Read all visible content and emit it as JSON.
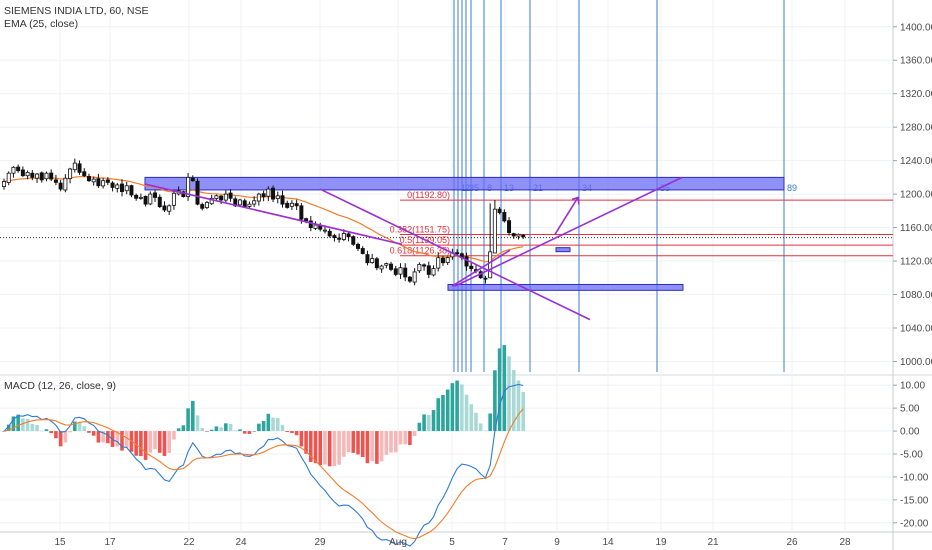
{
  "header": {
    "symbol_line": "SIEMENS INDIA LTD, 60, NSE",
    "ema_label": "EMA (25, close)"
  },
  "macd": {
    "label": "MACD (12, 26, close, 9)",
    "fast": 12,
    "slow": 26,
    "signal": 9
  },
  "colors": {
    "up": "#2ca59d",
    "up_light": "#a9d9d4",
    "down": "#ef5350",
    "down_light": "#f6b7b6",
    "ema": "#f57c2a",
    "macd_line": "#2f7bd6",
    "signal_line": "#f57c2a",
    "rect": "#6a6cf5",
    "fib_red": "#e0323c",
    "fib_time": "#3b7bd4",
    "trend": "#9a2fd6",
    "grid": "#eef1f5",
    "axis": "#4a4a4a"
  },
  "x_axis": {
    "ticks": [
      "15",
      "17",
      "22",
      "24",
      "29",
      "Aug",
      "5",
      "7",
      "9",
      "14",
      "19",
      "21",
      "26",
      "28"
    ]
  },
  "price_axis": {
    "ticks": [
      "1400.00",
      "1360.00",
      "1320.00",
      "1280.00",
      "1240.00",
      "1200.00",
      "1160.00",
      "1120.00",
      "1080.00",
      "1040.00",
      "1000.00"
    ],
    "range": [
      985,
      1432
    ]
  },
  "macd_axis": {
    "ticks": [
      "10.00",
      "5.00",
      "0.00",
      "-5.00",
      "-10.00",
      "-15.00",
      "-20.00"
    ],
    "range": [
      -22,
      12
    ]
  },
  "chart_data": [
    {
      "type": "candlestick",
      "title": "SIEMENS INDIA LTD, 60, NSE",
      "ylim": [
        985,
        1432
      ],
      "indicators": [
        "EMA (25, close)"
      ],
      "annotations": {
        "fib_retracement": [
          {
            "label": "0(1192.80)",
            "value": 1192.8
          },
          {
            "label": "0.382(1151.75)",
            "value": 1151.75
          },
          {
            "label": "0.5(1139.05)",
            "value": 1139.05
          },
          {
            "label": "0.618(1126.38)",
            "value": 1126.38
          }
        ],
        "fib_time_zones": [
          "1",
          "2",
          "3",
          "5",
          "8",
          "13",
          "21",
          "34",
          "55",
          "89"
        ],
        "resistance_zone": [
          1205,
          1220
        ],
        "support_zone": [
          1085,
          1092
        ],
        "last_price_line": 1148
      },
      "series": [
        {
          "name": "price",
          "close_path": [
            1215,
            1225,
            1232,
            1228,
            1222,
            1226,
            1220,
            1224,
            1217,
            1225,
            1218,
            1214,
            1206,
            1219,
            1230,
            1237,
            1226,
            1222,
            1216,
            1218,
            1210,
            1216,
            1214,
            1208,
            1211,
            1203,
            1210,
            1199,
            1195,
            1196,
            1188,
            1200,
            1196,
            1185,
            1181,
            1186,
            1201,
            1204,
            1197,
            1220,
            1216,
            1188,
            1183,
            1190,
            1195,
            1198,
            1193,
            1200,
            1195,
            1186,
            1193,
            1185,
            1188,
            1192,
            1200,
            1197,
            1206,
            1194,
            1198,
            1188,
            1184,
            1189,
            1186,
            1170,
            1168,
            1160,
            1163,
            1158,
            1157,
            1150,
            1148,
            1146,
            1153,
            1149,
            1140,
            1135,
            1129,
            1118,
            1123,
            1112,
            1114,
            1117,
            1110,
            1104,
            1112,
            1101,
            1096,
            1107,
            1116,
            1114,
            1104,
            1111,
            1124,
            1118,
            1124,
            1130,
            1130,
            1124,
            1114,
            1111,
            1108,
            1100,
            1099,
            1131,
            1182,
            1178,
            1168,
            1154,
            1150,
            1152,
            1149
          ]
        }
      ]
    },
    {
      "type": "bar",
      "title": "MACD (12, 26, close, 9)",
      "ylim": [
        -22,
        12
      ],
      "series": [
        {
          "name": "histogram",
          "values": "computed from price close_path"
        },
        {
          "name": "MACD",
          "values": "computed from price close_path"
        },
        {
          "name": "signal",
          "values": "computed from price close_path"
        }
      ]
    }
  ]
}
